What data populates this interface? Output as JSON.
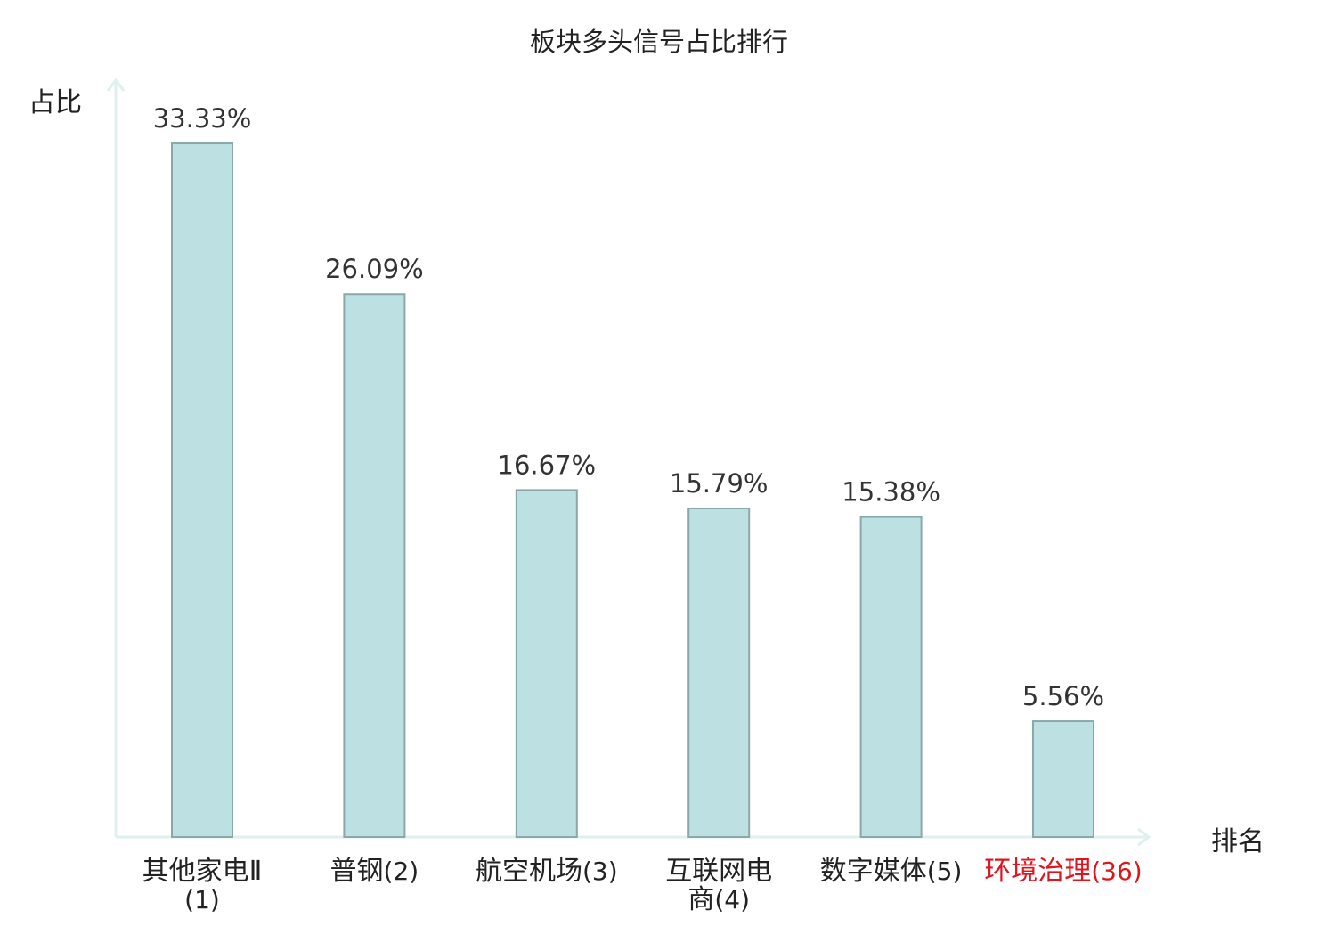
{
  "chart_data": {
    "type": "bar",
    "title": "板块多头信号占比排行",
    "ylabel": "占比",
    "xlabel": "排名",
    "ylim": [
      0,
      35
    ],
    "categories": [
      {
        "name": "其他家电Ⅱ",
        "rank": "(1)",
        "highlight": false
      },
      {
        "name": "普钢",
        "rank": "(2)",
        "highlight": false
      },
      {
        "name": "航空机场",
        "rank": "(3)",
        "highlight": false
      },
      {
        "name": "互联网电商",
        "rank": "(4)",
        "highlight": false
      },
      {
        "name": "数字媒体",
        "rank": "(5)",
        "highlight": false
      },
      {
        "name": "环境治理",
        "rank": "(36)",
        "highlight": true
      }
    ],
    "values": [
      33.33,
      26.09,
      16.67,
      15.79,
      15.38,
      5.56
    ],
    "value_labels": [
      "33.33%",
      "26.09%",
      "16.67%",
      "15.79%",
      "15.38%",
      "5.56%"
    ],
    "grid": false,
    "legend": "none"
  },
  "colors": {
    "bar_fill": "#bde0e3",
    "bar_stroke": "#8aa8aa",
    "axis": "#dff0ee",
    "highlight": "#e0141e"
  }
}
